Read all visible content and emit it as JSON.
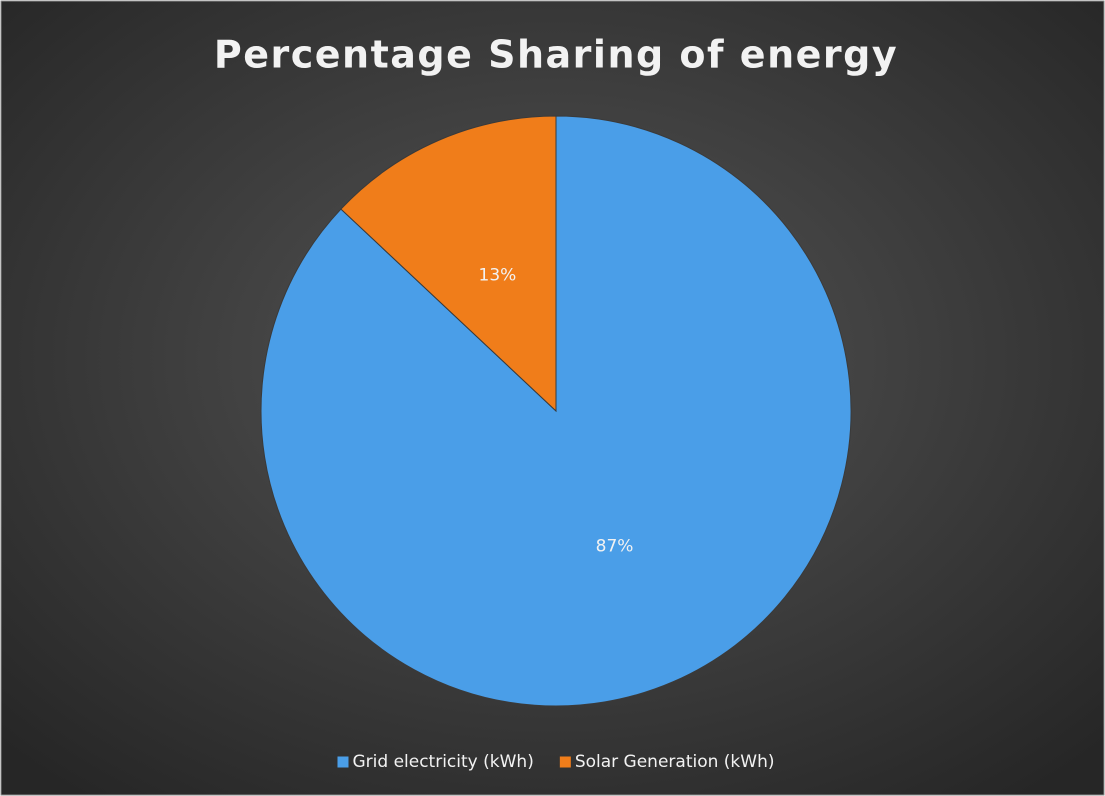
{
  "chart_data": {
    "type": "pie",
    "title": "Percentage Sharing of energy",
    "categories": [
      "Grid electricity (kWh)",
      "Solar Generation (kWh)"
    ],
    "values": [
      87,
      13
    ],
    "value_labels": [
      "87%",
      "13%"
    ],
    "colors": [
      "#4a9ee8",
      "#f07d1a"
    ],
    "legend": "bottom"
  }
}
